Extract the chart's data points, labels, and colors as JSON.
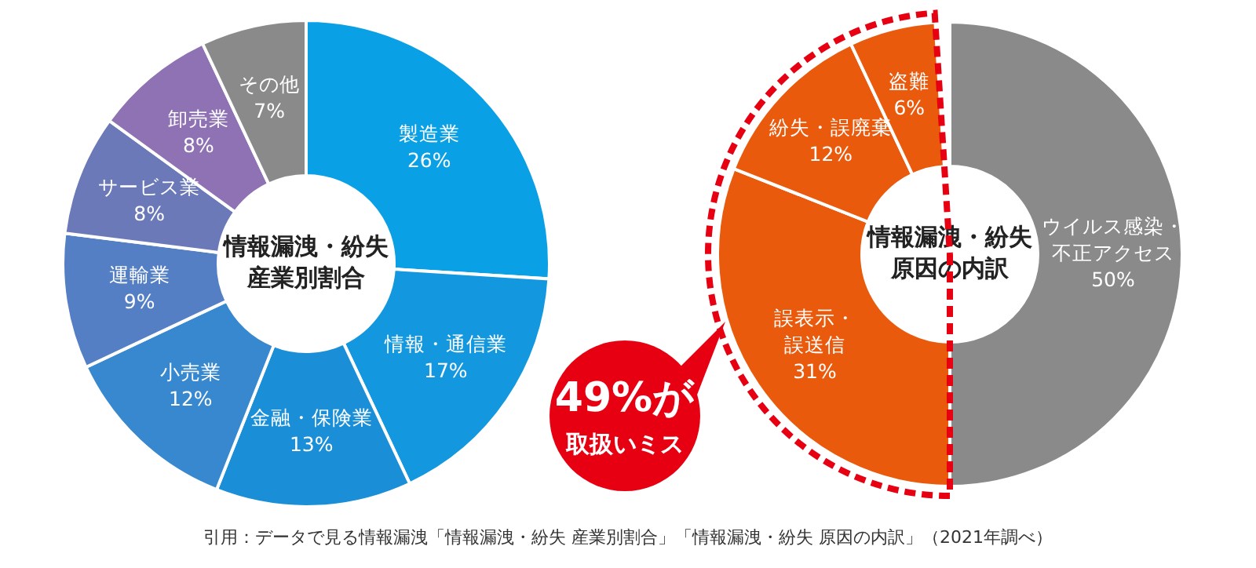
{
  "chart_data": [
    {
      "type": "donut",
      "title": "情報漏洩・紛失産業別割合",
      "categories": [
        "製造業",
        "情報・通信業",
        "金融・保険業",
        "小売業",
        "運輸業",
        "サービス業",
        "卸売業",
        "その他"
      ],
      "values": [
        26,
        17,
        13,
        12,
        9,
        8,
        8,
        7
      ],
      "value_labels": [
        "26%",
        "17%",
        "13%",
        "12%",
        "9%",
        "8%",
        "8%",
        "7%"
      ],
      "colors": [
        "#0aa0e6",
        "#1398e0",
        "#1a8fd8",
        "#3788cf",
        "#557fc4",
        "#6b79b8",
        "#8f72b4",
        "#8a8a8a"
      ],
      "annotations": [
        "引用：データで見る情報漏洩「情報漏洩・紛失 産業別割合」「情報漏洩・紛失 原因の内訳」（2021年調べ）"
      ]
    },
    {
      "type": "donut",
      "title": "情報漏洩・紛失原因の内訳",
      "categories": [
        "ウイルス感染・不正アクセス",
        "誤表示・誤送信",
        "紛失・誤廃棄",
        "盗難"
      ],
      "values": [
        50,
        31,
        12,
        6
      ],
      "value_labels": [
        "50%",
        "31%",
        "12%",
        "6%"
      ],
      "colors": [
        "#8a8a8a",
        "#e95a0c",
        "#e95a0c",
        "#e95a0c"
      ],
      "annotations": [
        "49%が取扱いミス"
      ]
    }
  ]
}
